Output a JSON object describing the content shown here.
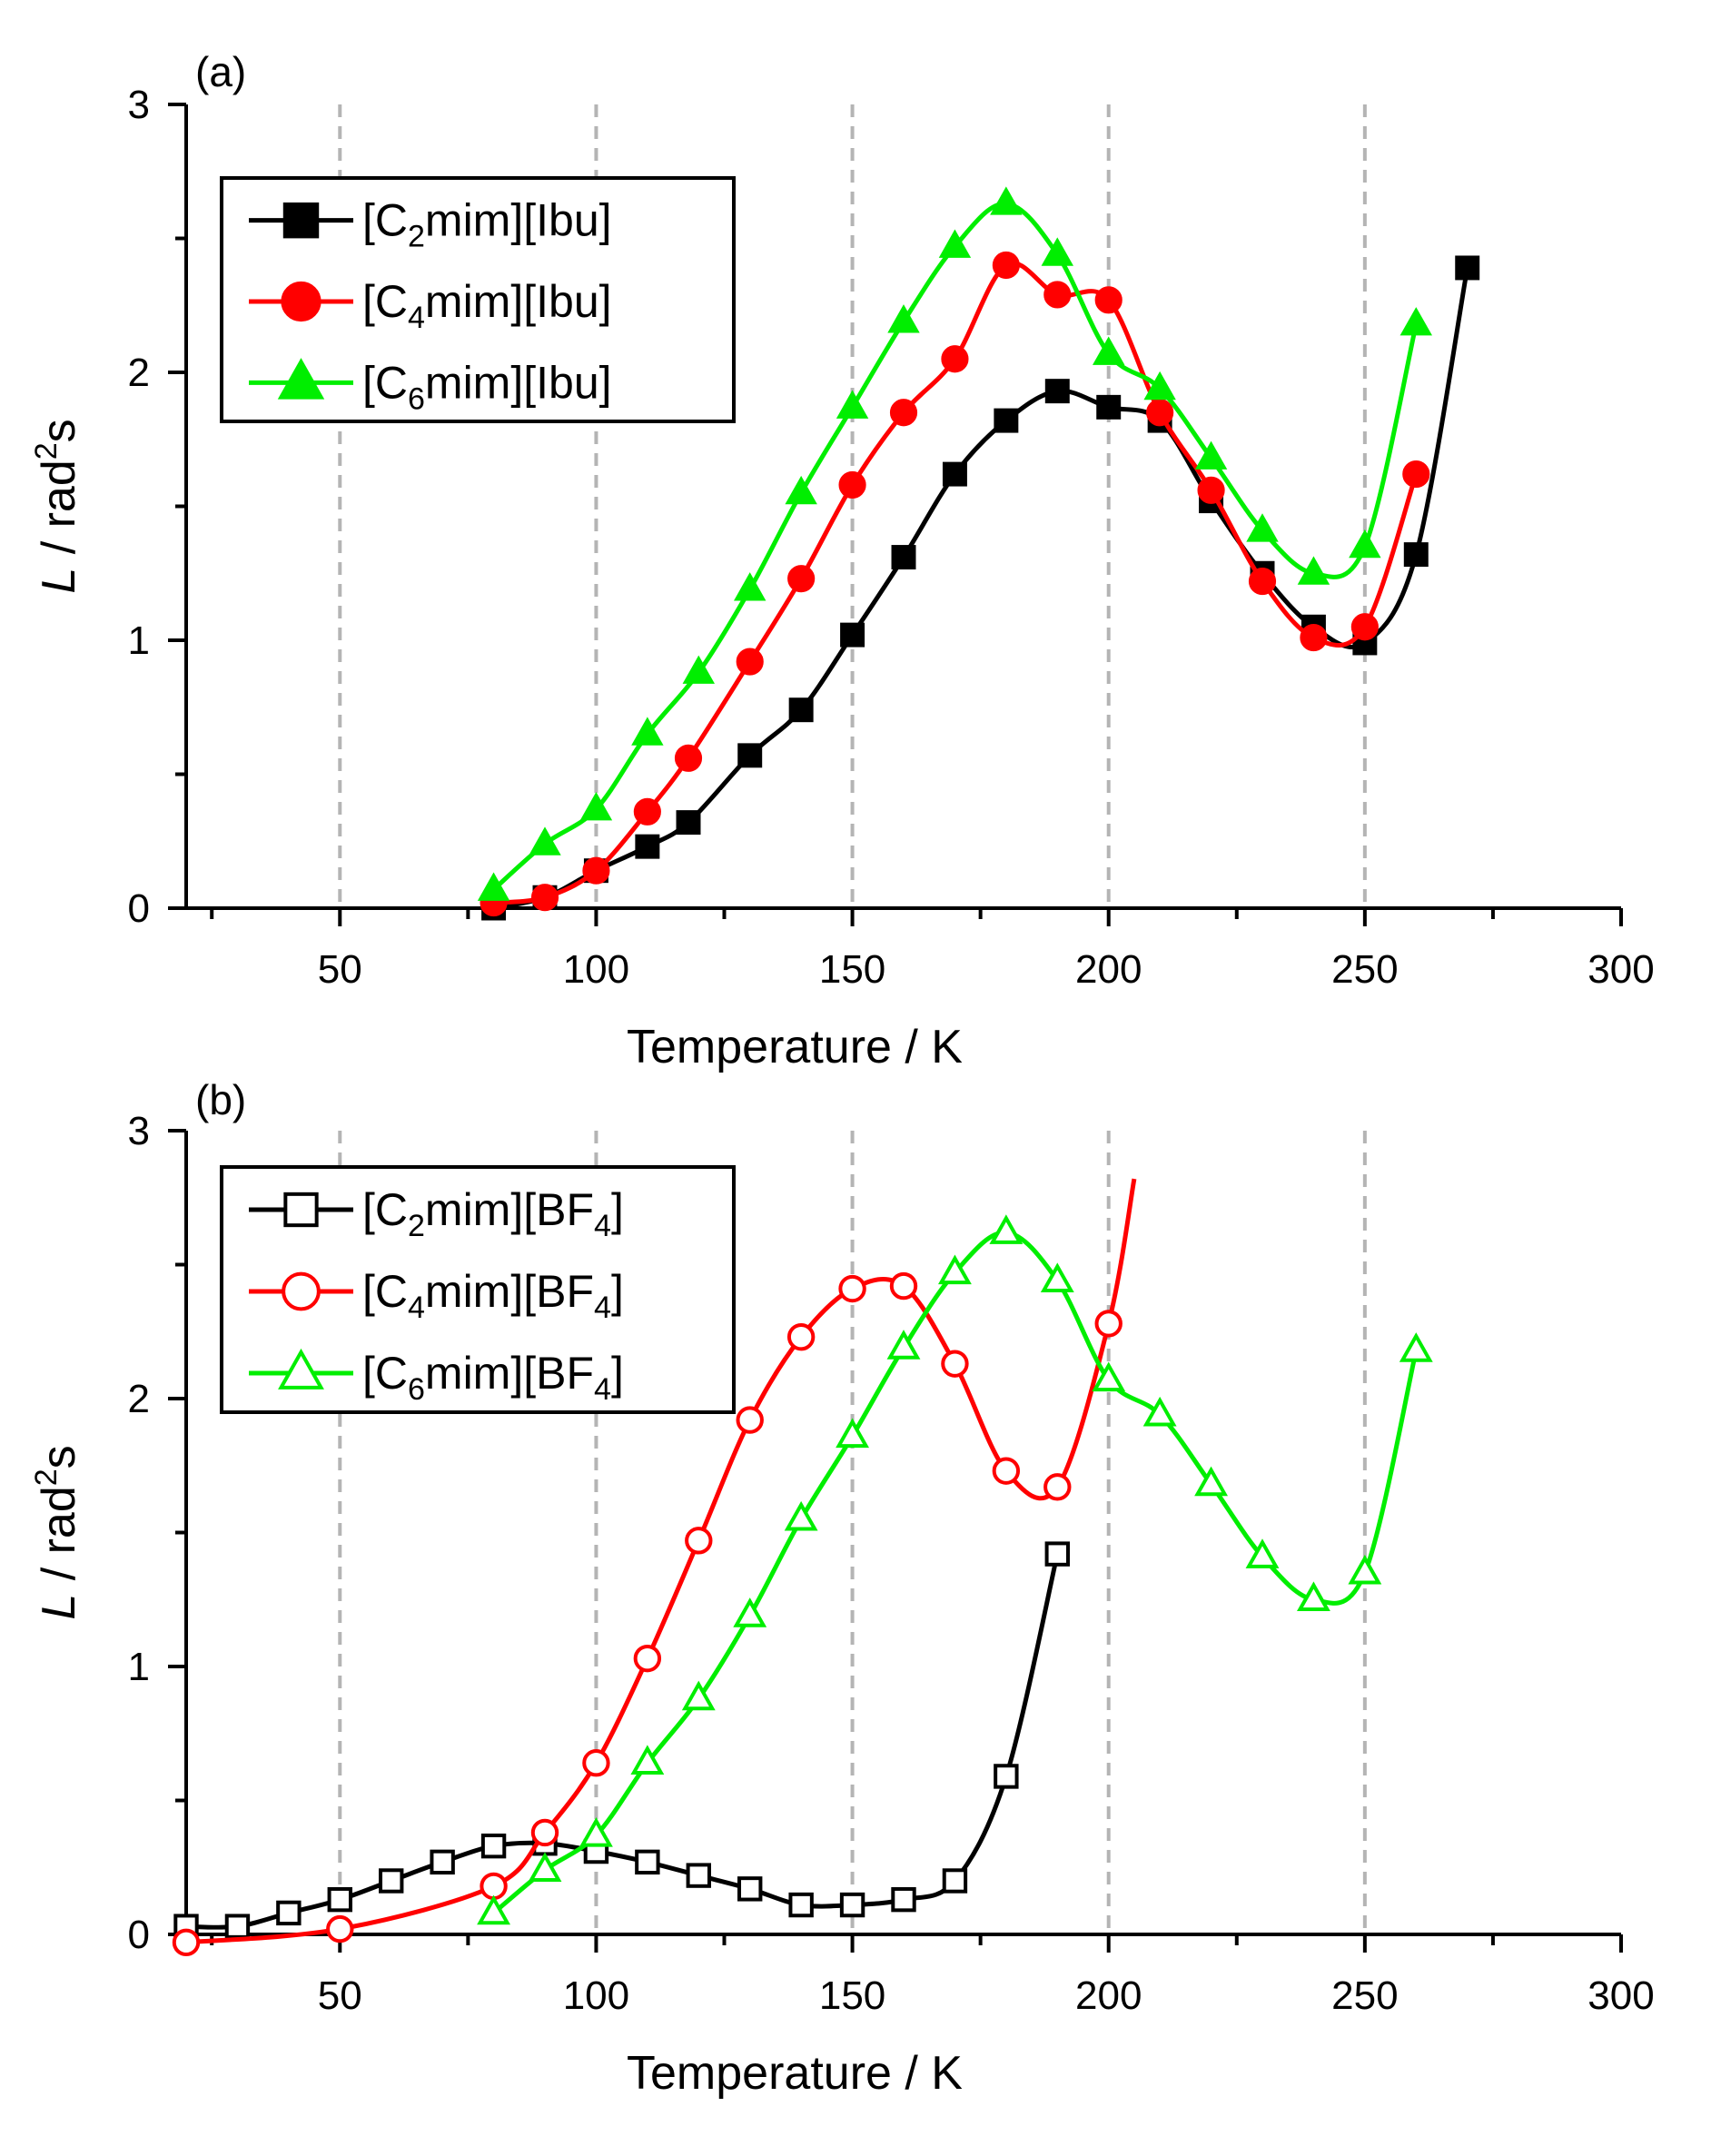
{
  "chart_data": [
    {
      "type": "line",
      "panel_label": "(a)",
      "xlabel": "Temperature / K",
      "ylabel": "L / rad²s",
      "ylabel_parts": {
        "italic": "L",
        "middle": " / rad",
        "sup": "2",
        "end": "s"
      },
      "xlim": [
        20,
        300
      ],
      "ylim": [
        0,
        3
      ],
      "xticks": [
        50,
        100,
        150,
        200,
        250,
        300
      ],
      "yticks": [
        0,
        1,
        2,
        3
      ],
      "grid_x": [
        50,
        100,
        150,
        200,
        250
      ],
      "legend_position": "top-left",
      "series": [
        {
          "name": "[C2mim][Ibu]",
          "name_parts": {
            "pre": "[C",
            "sub": "2",
            "post": "mim][Ibu]"
          },
          "color": "#000000",
          "marker": "square",
          "filled": true,
          "x": [
            80,
            90,
            100,
            110,
            118,
            130,
            140,
            150,
            160,
            170,
            180,
            190,
            200,
            210,
            220,
            230,
            240,
            250,
            260,
            270
          ],
          "y": [
            0.0,
            0.04,
            0.14,
            0.23,
            0.32,
            0.57,
            0.74,
            1.02,
            1.31,
            1.62,
            1.82,
            1.93,
            1.87,
            1.82,
            1.52,
            1.25,
            1.05,
            0.99,
            1.32,
            2.39
          ]
        },
        {
          "name": "[C4mim][Ibu]",
          "name_parts": {
            "pre": "[C",
            "sub": "4",
            "post": "mim][Ibu]"
          },
          "color": "#ff0000",
          "marker": "circle",
          "filled": true,
          "x": [
            80,
            90,
            100,
            110,
            118,
            130,
            140,
            150,
            160,
            170,
            180,
            190,
            200,
            210,
            220,
            230,
            240,
            250,
            260
          ],
          "y": [
            0.02,
            0.04,
            0.14,
            0.36,
            0.56,
            0.92,
            1.23,
            1.58,
            1.85,
            2.05,
            2.4,
            2.29,
            2.27,
            1.85,
            1.56,
            1.22,
            1.01,
            1.05,
            1.62
          ]
        },
        {
          "name": "[C6mim][Ibu]",
          "name_parts": {
            "pre": "[C",
            "sub": "6",
            "post": "mim][Ibu]"
          },
          "color": "#00ee00",
          "marker": "triangle",
          "filled": true,
          "x": [
            80,
            90,
            100,
            110,
            120,
            130,
            140,
            150,
            160,
            170,
            180,
            190,
            200,
            210,
            220,
            230,
            240,
            250,
            260
          ],
          "y": [
            0.07,
            0.24,
            0.37,
            0.65,
            0.88,
            1.19,
            1.55,
            1.87,
            2.19,
            2.47,
            2.63,
            2.44,
            2.07,
            1.94,
            1.68,
            1.41,
            1.25,
            1.35,
            2.18
          ]
        }
      ]
    },
    {
      "type": "line",
      "panel_label": "(b)",
      "xlabel": "Temperature / K",
      "ylabel": "L / rad²s",
      "ylabel_parts": {
        "italic": "L",
        "middle": " / rad",
        "sup": "2",
        "end": "s"
      },
      "xlim": [
        20,
        300
      ],
      "ylim": [
        0,
        3
      ],
      "xticks": [
        50,
        100,
        150,
        200,
        250,
        300
      ],
      "yticks": [
        0,
        1,
        2,
        3
      ],
      "grid_x": [
        50,
        100,
        150,
        200,
        250
      ],
      "legend_position": "top-left",
      "series": [
        {
          "name": "[C2mim][BF4]",
          "name_parts": {
            "pre": "[C",
            "sub": "2",
            "post": "mim][BF",
            "sub2": "4",
            "post2": "]"
          },
          "color": "#000000",
          "marker": "square",
          "filled": false,
          "x": [
            20,
            30,
            40,
            50,
            60,
            70,
            80,
            90,
            100,
            110,
            120,
            130,
            140,
            150,
            160,
            170,
            180,
            190
          ],
          "y": [
            0.03,
            0.03,
            0.08,
            0.13,
            0.2,
            0.27,
            0.33,
            0.34,
            0.31,
            0.27,
            0.22,
            0.17,
            0.11,
            0.11,
            0.13,
            0.2,
            0.59,
            1.42
          ]
        },
        {
          "name": "[C4mim][BF4]",
          "name_parts": {
            "pre": "[C",
            "sub": "4",
            "post": "mim][BF",
            "sub2": "4",
            "post2": "]"
          },
          "color": "#ff0000",
          "marker": "circle",
          "filled": false,
          "x": [
            20,
            50,
            80,
            90,
            100,
            110,
            120,
            130,
            140,
            150,
            160,
            170,
            180,
            190,
            200
          ],
          "y": [
            -0.03,
            0.02,
            0.18,
            0.38,
            0.64,
            1.03,
            1.47,
            1.92,
            2.23,
            2.41,
            2.42,
            2.13,
            1.73,
            1.67,
            2.28
          ]
        },
        {
          "name": "[C6mim][BF4]",
          "name_parts": {
            "pre": "[C",
            "sub": "6",
            "post": "mim][BF",
            "sub2": "4",
            "post2": "]"
          },
          "color": "#00ee00",
          "marker": "triangle",
          "filled": false,
          "x": [
            80,
            90,
            100,
            110,
            120,
            130,
            140,
            150,
            160,
            170,
            180,
            190,
            200,
            210,
            220,
            230,
            240,
            250,
            260
          ],
          "y": [
            0.08,
            0.24,
            0.37,
            0.64,
            0.88,
            1.19,
            1.55,
            1.86,
            2.19,
            2.47,
            2.62,
            2.44,
            2.07,
            1.94,
            1.68,
            1.41,
            1.25,
            1.35,
            2.18
          ]
        }
      ]
    }
  ]
}
